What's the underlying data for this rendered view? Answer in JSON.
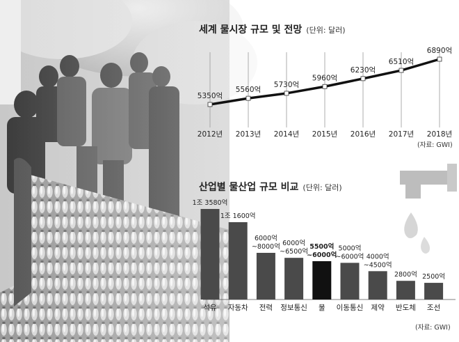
{
  "colors": {
    "bar": "#4a4a4a",
    "highlight_bar": "#111111",
    "line": "#111111",
    "marker": "#ffffff",
    "text": "#222222"
  },
  "illustration": "crowd-with-water-bottles-photo",
  "chart_data": [
    {
      "type": "line",
      "title": "세계 물시장 규모 및 전망",
      "unit": "(단위: 달러)",
      "categories": [
        "2012년",
        "2013년",
        "2014년",
        "2015년",
        "2016년",
        "2017년",
        "2018년"
      ],
      "values": [
        5350,
        5560,
        5730,
        5960,
        6230,
        6510,
        6890
      ],
      "labels": [
        "5350억",
        "5560억",
        "5730억",
        "5960억",
        "6230억",
        "6510억",
        "6890억"
      ],
      "source": "(자료: GWI)",
      "grid": "vertical"
    },
    {
      "type": "bar",
      "title": "산업별 물산업 규모 비교",
      "unit": "(단위: 달러)",
      "categories": [
        "석유",
        "자동차",
        "전력",
        "정보통신",
        "물",
        "이동통신",
        "제약",
        "반도체",
        "조선"
      ],
      "values": [
        13580,
        11600,
        7000,
        6250,
        5750,
        5500,
        4250,
        2800,
        2500
      ],
      "labels": [
        [
          "1조 3580억"
        ],
        [
          "1조 1600억"
        ],
        [
          "6000억",
          "~8000억"
        ],
        [
          "6000억",
          "~6500억"
        ],
        [
          "5500억",
          "~6000억"
        ],
        [
          "5000억",
          "~6000억"
        ],
        [
          "4000억",
          "~4500억"
        ],
        [
          "2800억"
        ],
        [
          "2500억"
        ]
      ],
      "highlight": "물",
      "source": "(자료: GWI)"
    }
  ]
}
